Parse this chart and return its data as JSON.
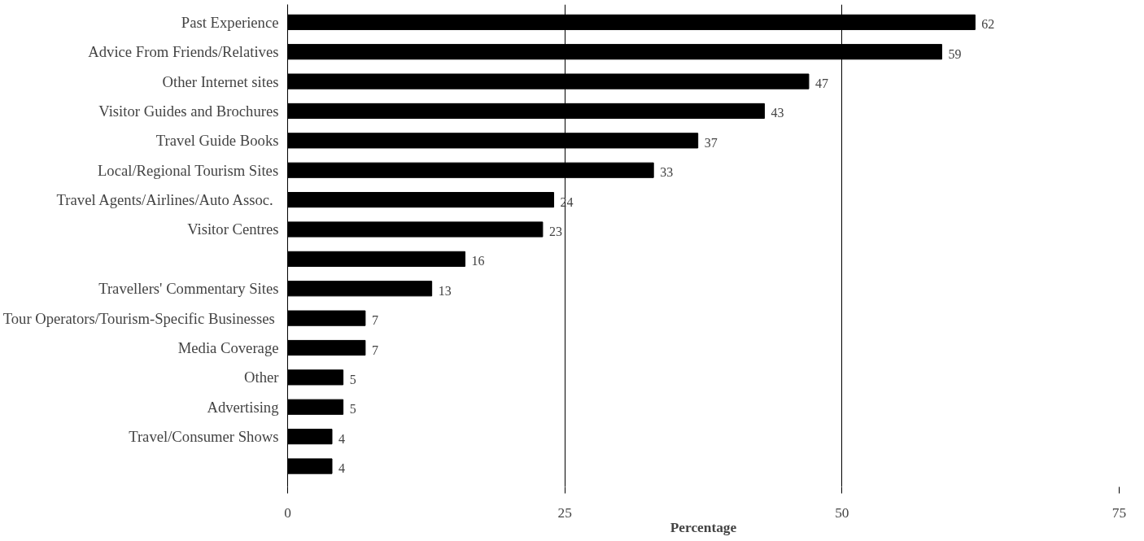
{
  "chart_data": {
    "type": "bar",
    "orientation": "horizontal",
    "xlabel": "Percentage",
    "categories": [
      "Past Experience",
      "Advice From Friends/Relatives",
      "Other Internet sites",
      "Visitor Guides and Brochures",
      "Travel Guide Books",
      "Local/Regional Tourism Sites",
      "Travel Agents/Airlines/Auto  Assoc.",
      "Visitor Centres",
      null,
      "Travellers' Commentary Sites",
      "Tour Operators/Tourism-Specific  Businesses",
      "Media Coverage",
      "Other",
      "Advertising",
      "Travel/Consumer Shows",
      null
    ],
    "values": [
      62,
      59,
      47,
      43,
      37,
      33,
      24,
      23,
      16,
      13,
      7,
      7,
      5,
      5,
      4,
      4
    ],
    "color": "#000000",
    "xlim": [
      0,
      75
    ],
    "xticks": [
      0,
      25,
      50,
      75
    ],
    "grid": "x",
    "data_labels": true
  }
}
